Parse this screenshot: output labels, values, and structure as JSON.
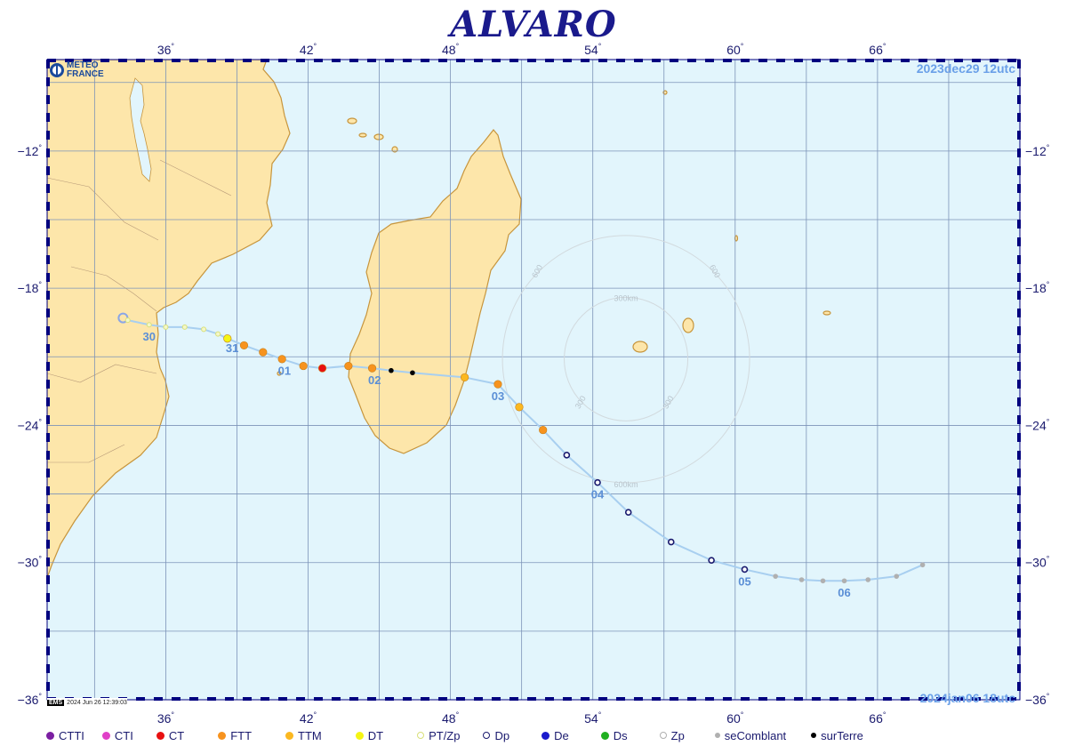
{
  "title": "ALVARO",
  "logo": {
    "text": "METEO FRANCE",
    "line1": "METEO",
    "line2": "FRANCE"
  },
  "date_start": "2023dec29  12utc",
  "date_end": "2024jan06  18utc",
  "stamp": {
    "logo": "EMS",
    "text": "2024 Jun 26 12:39:03"
  },
  "map_extent": {
    "lon_min": 31,
    "lon_max": 72,
    "lat_min": -36,
    "lat_max": -8
  },
  "lon_ticks": [
    36,
    42,
    48,
    54,
    60,
    66
  ],
  "lat_ticks": [
    -12,
    -18,
    -24,
    -30,
    -36
  ],
  "lon_tick_labels": [
    "36",
    "42",
    "48",
    "54",
    "60",
    "66"
  ],
  "lat_tick_labels": [
    "−12",
    "−18",
    "−24",
    "−30",
    "−36"
  ],
  "colors": {
    "ocean": "#e2f5fc",
    "land": "#fde6aa",
    "coast": "#c7953c",
    "grid": "#7c93b8",
    "track": "#a8cff0",
    "frame": "#00007f",
    "CTTI": "#7b1fa2",
    "CTI": "#e040c8",
    "CT": "#e81010",
    "FTT": "#f7931e",
    "TTM": "#fbb820",
    "DT": "#f5f514",
    "PT/Zp": "#d8e07a",
    "Dp": "#1a1a6e",
    "De": "#1a1acc",
    "Ds": "#20b020",
    "Zp": "#b0b0b0",
    "seComblant": "#b0b0b0",
    "surTerre": "#000000"
  },
  "track": [
    {
      "lon": 34.4,
      "lat": -19.4,
      "type": "PT/Zp"
    },
    {
      "lon": 35.3,
      "lat": -19.6,
      "type": "PT/Zp"
    },
    {
      "lon": 36.0,
      "lat": -19.7,
      "type": "PT/Zp"
    },
    {
      "lon": 36.8,
      "lat": -19.7,
      "type": "PT/Zp"
    },
    {
      "lon": 37.6,
      "lat": -19.8,
      "type": "PT/Zp"
    },
    {
      "lon": 38.2,
      "lat": -20.0,
      "type": "PT/Zp"
    },
    {
      "lon": 38.6,
      "lat": -20.2,
      "type": "DT"
    },
    {
      "lon": 39.3,
      "lat": -20.5,
      "type": "FTT"
    },
    {
      "lon": 40.1,
      "lat": -20.8,
      "type": "FTT"
    },
    {
      "lon": 40.9,
      "lat": -21.1,
      "type": "FTT"
    },
    {
      "lon": 41.8,
      "lat": -21.4,
      "type": "FTT"
    },
    {
      "lon": 42.6,
      "lat": -21.5,
      "type": "CT"
    },
    {
      "lon": 43.7,
      "lat": -21.4,
      "type": "FTT"
    },
    {
      "lon": 44.7,
      "lat": -21.5,
      "type": "FTT"
    },
    {
      "lon": 45.5,
      "lat": -21.6,
      "type": "surTerre"
    },
    {
      "lon": 46.4,
      "lat": -21.7,
      "type": "surTerre"
    },
    {
      "lon": 48.6,
      "lat": -21.9,
      "type": "TTM"
    },
    {
      "lon": 50.0,
      "lat": -22.2,
      "type": "FTT"
    },
    {
      "lon": 50.9,
      "lat": -23.2,
      "type": "TTM"
    },
    {
      "lon": 51.9,
      "lat": -24.2,
      "type": "FTT"
    },
    {
      "lon": 52.9,
      "lat": -25.3,
      "type": "Dp"
    },
    {
      "lon": 54.2,
      "lat": -26.5,
      "type": "Dp"
    },
    {
      "lon": 55.5,
      "lat": -27.8,
      "type": "Dp"
    },
    {
      "lon": 57.3,
      "lat": -29.1,
      "type": "Dp"
    },
    {
      "lon": 59.0,
      "lat": -29.9,
      "type": "Dp"
    },
    {
      "lon": 60.4,
      "lat": -30.3,
      "type": "Dp"
    },
    {
      "lon": 61.7,
      "lat": -30.6,
      "type": "seComblant"
    },
    {
      "lon": 62.8,
      "lat": -30.75,
      "type": "seComblant"
    },
    {
      "lon": 63.7,
      "lat": -30.8,
      "type": "seComblant"
    },
    {
      "lon": 64.6,
      "lat": -30.8,
      "type": "seComblant"
    },
    {
      "lon": 65.6,
      "lat": -30.75,
      "type": "seComblant"
    },
    {
      "lon": 66.8,
      "lat": -30.6,
      "type": "seComblant"
    },
    {
      "lon": 67.9,
      "lat": -30.1,
      "type": "seComblant"
    }
  ],
  "start_marker": {
    "lon": 34.2,
    "lat": -19.3
  },
  "day_labels": [
    {
      "text": "30",
      "lon": 35.3,
      "lat": -20.1
    },
    {
      "text": "31",
      "lon": 38.8,
      "lat": -20.6
    },
    {
      "text": "01",
      "lon": 41.0,
      "lat": -21.6
    },
    {
      "text": "02",
      "lon": 44.8,
      "lat": -22.0
    },
    {
      "text": "03",
      "lon": 50.0,
      "lat": -22.7
    },
    {
      "text": "04",
      "lon": 54.2,
      "lat": -27.0
    },
    {
      "text": "05",
      "lon": 60.4,
      "lat": -30.8
    },
    {
      "text": "06",
      "lon": 64.6,
      "lat": -31.3
    }
  ],
  "range_rings": {
    "center": {
      "lon": 55.4,
      "lat": -21.1
    },
    "rings_km": [
      300,
      600
    ],
    "labels": [
      "300km",
      "600km",
      "300",
      "600"
    ]
  },
  "legend": [
    {
      "label": "CTTI",
      "key": "CTTI",
      "style": "solid"
    },
    {
      "label": "CTI",
      "key": "CTI",
      "style": "solid"
    },
    {
      "label": "CT",
      "key": "CT",
      "style": "solid"
    },
    {
      "label": "FTT",
      "key": "FTT",
      "style": "solid"
    },
    {
      "label": "TTM",
      "key": "TTM",
      "style": "solid"
    },
    {
      "label": "DT",
      "key": "DT",
      "style": "solid"
    },
    {
      "label": "PT/Zp",
      "key": "PT/Zp",
      "style": "ring"
    },
    {
      "label": "Dp",
      "key": "Dp",
      "style": "ring"
    },
    {
      "label": "De",
      "key": "De",
      "style": "solid"
    },
    {
      "label": "Ds",
      "key": "Ds",
      "style": "solid"
    },
    {
      "label": "Zp",
      "key": "Zp",
      "style": "ring"
    },
    {
      "label": "seComblant",
      "key": "seComblant",
      "style": "solid"
    },
    {
      "label": "surTerre",
      "key": "surTerre",
      "style": "solid"
    }
  ]
}
